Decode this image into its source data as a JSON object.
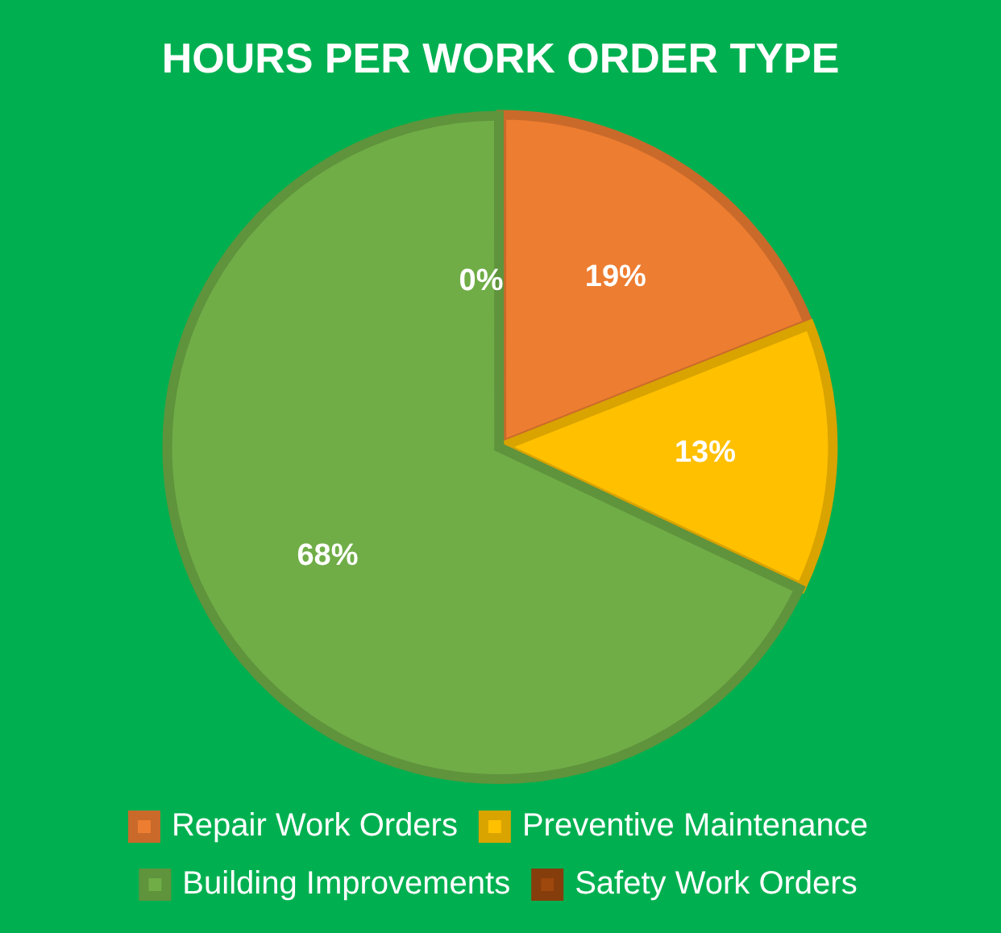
{
  "chart_data": {
    "type": "pie",
    "title": "HOURS PER WORK ORDER TYPE",
    "categories": [
      "Repair Work Orders",
      "Preventive Maintenance",
      "Building Improvements",
      "Safety Work Orders"
    ],
    "values": [
      19,
      13,
      68,
      0
    ],
    "colors": [
      "#ed7d31",
      "#ffc000",
      "#70ad47",
      "#9e480e"
    ],
    "value_labels": [
      "19%",
      "13%",
      "68%",
      "0%"
    ],
    "legend": "bottom"
  }
}
